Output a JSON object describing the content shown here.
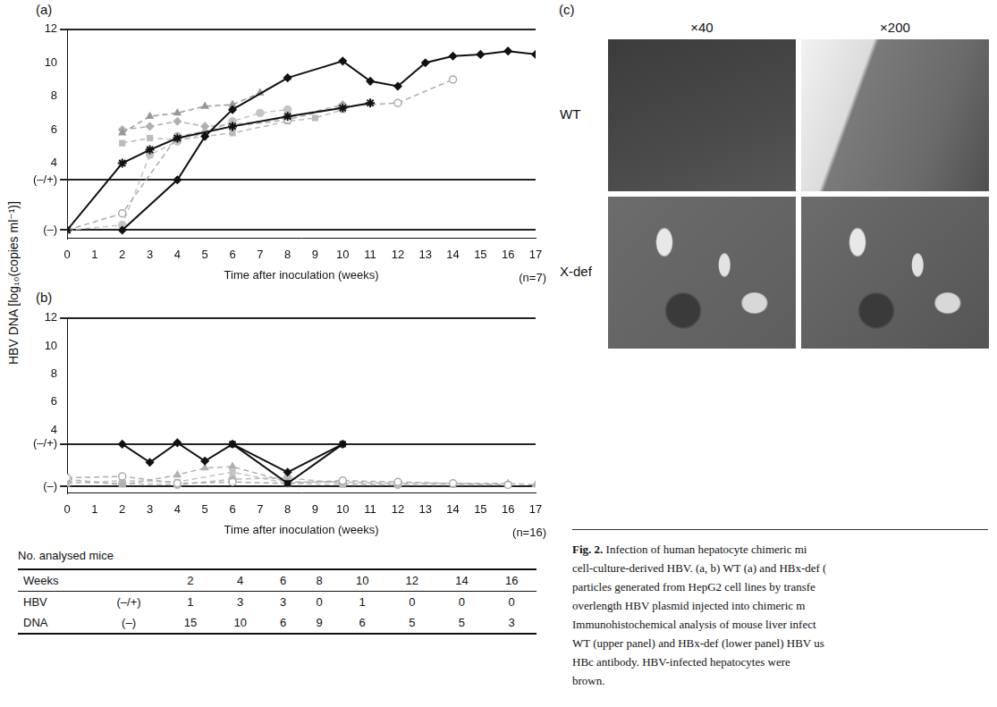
{
  "figure": {
    "y_label": "HBV DNA [log₁₀(copies ml⁻¹)]"
  },
  "chart_data": [
    {
      "panel": "(a)",
      "type": "line",
      "x_label": "Time after inoculation (weeks)",
      "n_label": "(n=7)",
      "xlim": [
        0,
        17
      ],
      "xticks": [
        0,
        1,
        2,
        3,
        4,
        5,
        6,
        7,
        8,
        9,
        10,
        11,
        12,
        13,
        14,
        15,
        16,
        17
      ],
      "ylim": [
        -0.5,
        12
      ],
      "yticks": [
        {
          "value": 0,
          "label": "(–)"
        },
        {
          "value": 3,
          "label": "(–/+)"
        },
        4,
        6,
        8,
        10,
        12
      ],
      "grid": false,
      "series": [
        {
          "color": "#111111",
          "marker": "star",
          "line_style": "solid",
          "x": [
            0,
            2,
            3,
            4,
            6,
            8,
            10,
            11
          ],
          "values": [
            0,
            4.0,
            4.8,
            5.5,
            6.2,
            6.8,
            7.3,
            7.6
          ]
        },
        {
          "color": "#111111",
          "marker": "diamond",
          "line_style": "solid",
          "x": [
            2,
            4,
            5,
            6,
            8,
            10,
            11,
            12,
            13,
            14,
            15,
            16,
            17
          ],
          "values": [
            0,
            3.0,
            5.6,
            7.2,
            9.1,
            10.1,
            8.9,
            8.6,
            10.0,
            10.4,
            10.5,
            10.7,
            10.5
          ]
        },
        {
          "color": "#999999",
          "marker": "triangle",
          "line_style": "dashed",
          "x": [
            2,
            3,
            4,
            5,
            6,
            7,
            8
          ],
          "values": [
            5.8,
            6.8,
            7.0,
            7.4,
            7.5,
            8.2,
            9.1
          ]
        },
        {
          "color": "#aaaaaa",
          "marker": "circle_open",
          "line_style": "dashed",
          "x": [
            0,
            2,
            4,
            6,
            8,
            10,
            12,
            14
          ],
          "values": [
            0,
            1.0,
            5.6,
            6.2,
            6.6,
            7.4,
            7.6,
            9.0
          ]
        },
        {
          "color": "#b0b0b0",
          "marker": "diamond",
          "line_style": "dashed",
          "x": [
            2,
            3,
            4,
            5,
            6,
            8,
            10
          ],
          "values": [
            6.0,
            6.2,
            6.5,
            6.2,
            6.3,
            6.7,
            7.5
          ]
        },
        {
          "color": "#bbbbbb",
          "marker": "square",
          "line_style": "dashed",
          "x": [
            2,
            3,
            4,
            6,
            8,
            9,
            10
          ],
          "values": [
            5.2,
            5.5,
            5.4,
            5.8,
            6.5,
            6.7,
            7.2
          ]
        },
        {
          "color": "#c4c4c4",
          "marker": "circle",
          "line_style": "dashed",
          "x": [
            0,
            2,
            3,
            4,
            5,
            6,
            7,
            8
          ],
          "values": [
            0,
            0.3,
            4.5,
            5.3,
            5.8,
            6.5,
            7.0,
            7.2
          ]
        }
      ]
    },
    {
      "panel": "(b)",
      "type": "line",
      "x_label": "Time after inoculation (weeks)",
      "n_label": "(n=16)",
      "xlim": [
        0,
        17
      ],
      "xticks": [
        0,
        1,
        2,
        3,
        4,
        5,
        6,
        7,
        8,
        9,
        10,
        11,
        12,
        13,
        14,
        15,
        16,
        17
      ],
      "ylim": [
        -0.5,
        12
      ],
      "yticks": [
        {
          "value": 0,
          "label": "(–)"
        },
        {
          "value": 3,
          "label": "(–/+)"
        },
        4,
        6,
        8,
        10,
        12
      ],
      "grid": false,
      "series": [
        {
          "color": "#111111",
          "marker": "diamond",
          "line_style": "solid",
          "x": [
            2,
            3,
            4,
            5,
            6,
            8,
            10
          ],
          "values": [
            3.0,
            1.7,
            3.1,
            1.8,
            3.0,
            1.0,
            3.0
          ]
        },
        {
          "color": "#111111",
          "marker": "square",
          "line_style": "solid",
          "x": [
            6,
            8,
            10
          ],
          "values": [
            3.0,
            0.2,
            3.0
          ]
        },
        {
          "color": "#aaaaaa",
          "marker": "circle_open",
          "line_style": "dashed",
          "x": [
            0,
            2,
            4,
            6,
            8,
            10,
            12,
            14,
            16
          ],
          "values": [
            0.6,
            0.7,
            0.2,
            0.3,
            0.2,
            0.4,
            0.3,
            0.2,
            0.1
          ]
        },
        {
          "color": "#b0b0b0",
          "marker": "triangle",
          "line_style": "dashed",
          "x": [
            0,
            2,
            4,
            5,
            6,
            8,
            10,
            12,
            14,
            16,
            17
          ],
          "values": [
            0.5,
            0.1,
            0.8,
            1.3,
            1.4,
            0.3,
            0.3,
            0.2,
            0.2,
            0.2,
            0.1
          ]
        },
        {
          "color": "#bbbbbb",
          "marker": "circle",
          "line_style": "dashed",
          "x": [
            0,
            2,
            4,
            6,
            8,
            10,
            12
          ],
          "values": [
            0.3,
            0.2,
            0.1,
            0.5,
            0.6,
            0.2,
            0.1
          ]
        },
        {
          "color": "#c4c4c4",
          "marker": "square",
          "line_style": "dashed",
          "x": [
            0,
            2,
            4,
            6,
            8,
            10,
            12,
            14,
            16
          ],
          "values": [
            0.2,
            0.4,
            0.3,
            1.0,
            0.2,
            0.1,
            0.1,
            0.1,
            0.1
          ]
        }
      ]
    }
  ],
  "table": {
    "title": "No. analysed mice",
    "header": {
      "label": "Weeks",
      "values": [
        2,
        4,
        6,
        8,
        10,
        12,
        14,
        16
      ]
    },
    "rows": [
      {
        "label": "HBV",
        "sublabel": "(–/+)",
        "values": [
          1,
          3,
          3,
          0,
          1,
          0,
          0,
          0
        ]
      },
      {
        "label": "DNA",
        "sublabel": "(–)",
        "values": [
          15,
          10,
          6,
          9,
          6,
          5,
          5,
          3
        ]
      }
    ]
  },
  "panel_c": {
    "panel": "(c)",
    "columns": [
      "×40",
      "×200"
    ],
    "rows": [
      "WT",
      "X-def"
    ]
  },
  "caption": {
    "label": "Fig. 2.",
    "lines": [
      "Infection of human hepatocyte chimeric mi",
      "cell-culture-derived HBV. (a, b) WT (a) and HBx-def (",
      "particles generated from HepG2 cell lines by transfe",
      "overlength HBV plasmid injected into chimeric m",
      "Immunohistochemical analysis of mouse liver infect",
      "WT (upper panel) and HBx-def (lower panel) HBV us",
      "HBc antibody. HBV-infected hepatocytes were",
      "brown."
    ]
  }
}
